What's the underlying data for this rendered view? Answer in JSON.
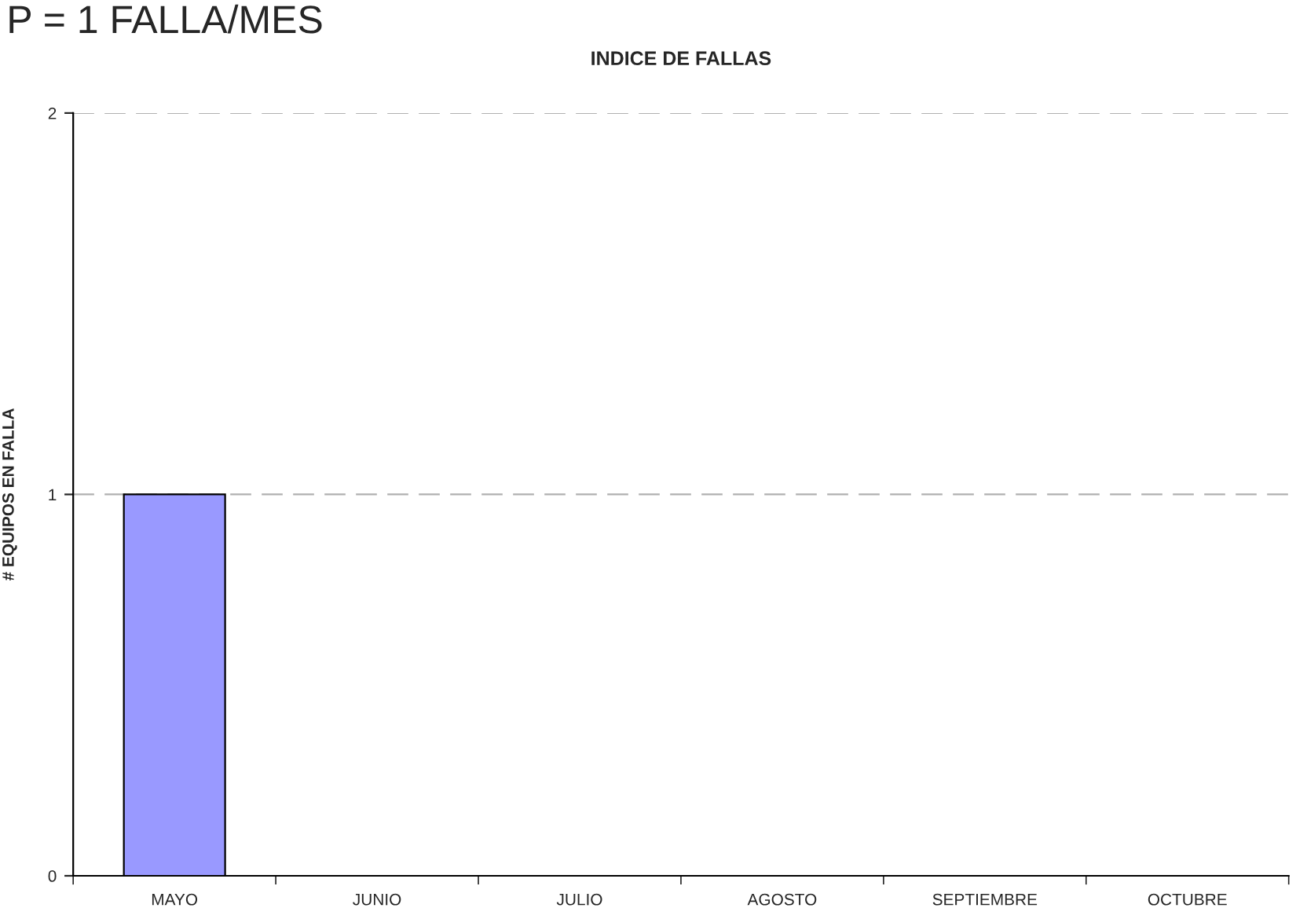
{
  "chart_data": {
    "type": "bar",
    "title": "INDICE DE FALLAS",
    "ylabel": "# EQUIPOS EN FALLA",
    "annotations": [
      "P = 1 FALLA/MES"
    ],
    "categories": [
      "MAYO",
      "JUNIO",
      "JULIO",
      "AGOSTO",
      "SEPTIEMBRE",
      "OCTUBRE"
    ],
    "values": [
      1,
      0,
      0,
      0,
      0,
      0
    ],
    "color": "#9999ff",
    "ylim": [
      0,
      2
    ],
    "yticks": [
      0,
      1,
      2
    ],
    "grid": "y",
    "line_style": "dashed"
  }
}
